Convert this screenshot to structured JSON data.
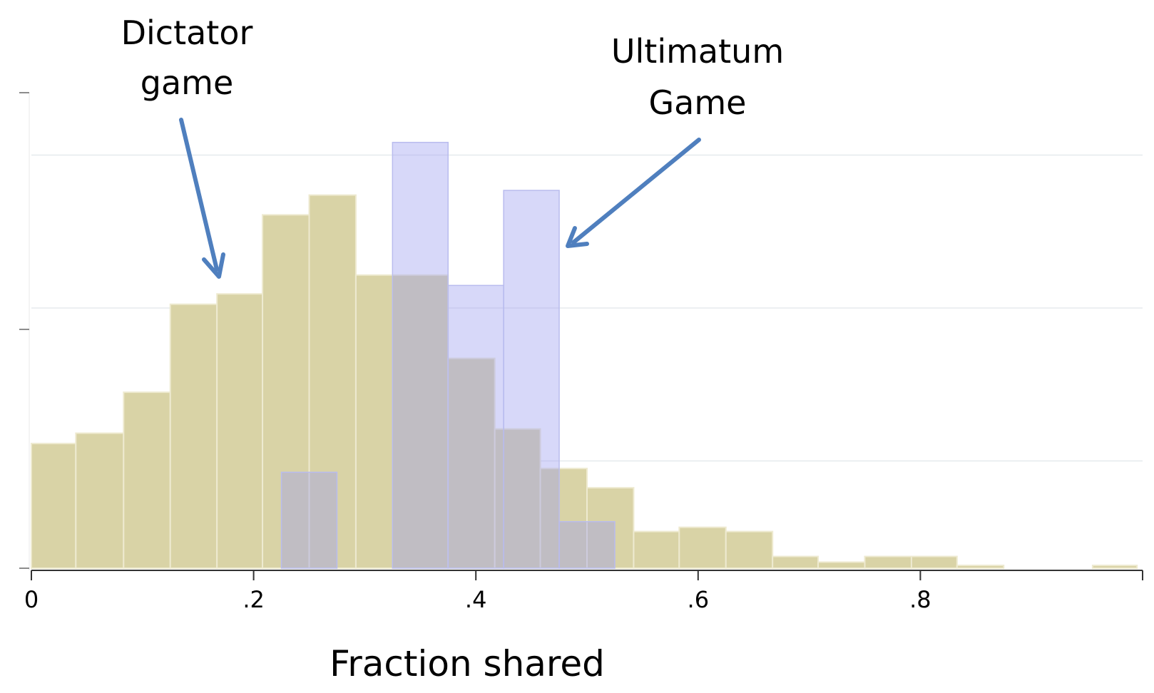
{
  "chart_data": {
    "type": "bar",
    "xlabel": "Fraction shared",
    "ylabel": "",
    "xlim": [
      0,
      1
    ],
    "ylim": [
      0,
      1
    ],
    "grid": true,
    "x_ticks": [
      {
        "value": 0,
        "label": "0"
      },
      {
        "value": 0.2,
        "label": ".2"
      },
      {
        "value": 0.4,
        "label": ".4"
      },
      {
        "value": 0.6,
        "label": ".6"
      },
      {
        "value": 0.8,
        "label": ".8"
      }
    ],
    "series": [
      {
        "key": "dictator",
        "color": "#d9d3a6",
        "bins": [
          {
            "x0": 0.0,
            "x1": 0.04,
            "y": 0.265
          },
          {
            "x0": 0.04,
            "x1": 0.083,
            "y": 0.287
          },
          {
            "x0": 0.083,
            "x1": 0.125,
            "y": 0.374
          },
          {
            "x0": 0.125,
            "x1": 0.167,
            "y": 0.561
          },
          {
            "x0": 0.167,
            "x1": 0.208,
            "y": 0.583
          },
          {
            "x0": 0.208,
            "x1": 0.25,
            "y": 0.751
          },
          {
            "x0": 0.25,
            "x1": 0.292,
            "y": 0.793
          },
          {
            "x0": 0.292,
            "x1": 0.375,
            "y": 0.623
          },
          {
            "x0": 0.375,
            "x1": 0.417,
            "y": 0.446
          },
          {
            "x0": 0.417,
            "x1": 0.458,
            "y": 0.296
          },
          {
            "x0": 0.458,
            "x1": 0.5,
            "y": 0.212
          },
          {
            "x0": 0.5,
            "x1": 0.542,
            "y": 0.171
          },
          {
            "x0": 0.542,
            "x1": 0.583,
            "y": 0.078
          },
          {
            "x0": 0.583,
            "x1": 0.625,
            "y": 0.087
          },
          {
            "x0": 0.625,
            "x1": 0.667,
            "y": 0.078
          },
          {
            "x0": 0.667,
            "x1": 0.708,
            "y": 0.025
          },
          {
            "x0": 0.708,
            "x1": 0.75,
            "y": 0.013
          },
          {
            "x0": 0.75,
            "x1": 0.792,
            "y": 0.025
          },
          {
            "x0": 0.792,
            "x1": 0.833,
            "y": 0.025
          },
          {
            "x0": 0.833,
            "x1": 0.875,
            "y": 0.006
          },
          {
            "x0": 0.955,
            "x1": 0.995,
            "y": 0.006
          }
        ]
      },
      {
        "key": "ultimatum",
        "color": "#c5c8f5",
        "bins": [
          {
            "x0": 0.225,
            "x1": 0.275,
            "y": 0.204
          },
          {
            "x0": 0.325,
            "x1": 0.375,
            "y": 0.905
          },
          {
            "x0": 0.375,
            "x1": 0.425,
            "y": 0.601
          },
          {
            "x0": 0.425,
            "x1": 0.475,
            "y": 0.803
          },
          {
            "x0": 0.475,
            "x1": 0.525,
            "y": 0.099
          }
        ]
      }
    ],
    "annotations": [
      {
        "key": "dictator",
        "lines": [
          "Dictator",
          "game"
        ]
      },
      {
        "key": "ultimatum",
        "lines": [
          "Ultimatum",
          "Game"
        ]
      }
    ],
    "colors": {
      "overlap": "#b8b09f",
      "arrow": "#4f7fbe",
      "axis": "#333333",
      "grid": "#e6eaee"
    }
  }
}
